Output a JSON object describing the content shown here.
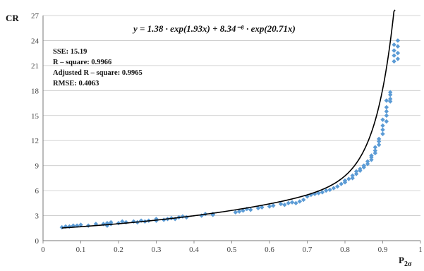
{
  "chart_data": {
    "type": "scatter",
    "title": "",
    "xlabel": "P",
    "xlabel_subscript": "2σ",
    "ylabel": "CR",
    "xlim": [
      0,
      1
    ],
    "ylim": [
      0,
      27
    ],
    "x_ticks": [
      "0",
      "0.1",
      "0.2",
      "0.3",
      "0.4",
      "0.5",
      "0.6",
      "0.7",
      "0.8",
      "0.9",
      "1"
    ],
    "y_ticks": [
      "0",
      "3",
      "6",
      "9",
      "12",
      "15",
      "18",
      "21",
      "24",
      "27"
    ],
    "grid": "horizontal",
    "formula": "y = 1.38 · exp(1.93x) + 8.34⁻⁸ · exp(20.71x)",
    "stats": [
      "SSE: 15.19",
      "R – square: 0.9966",
      "Adjusted R – square: 0.9965",
      "RMSE: 0.4063"
    ],
    "colors": {
      "points": "#5b9bd5",
      "fit": "#000000",
      "grid": "#c8c8c8"
    },
    "fit": {
      "a": 1.38,
      "b": 1.93,
      "c": 8.34e-08,
      "d": 20.71,
      "x_start": 0.05,
      "x_end": 0.96
    },
    "series": [
      {
        "marker": "diamond",
        "x": [
          0.05,
          0.06,
          0.07,
          0.08,
          0.09,
          0.1,
          0.12,
          0.14,
          0.16,
          0.17,
          0.17,
          0.18,
          0.18,
          0.2,
          0.21,
          0.22,
          0.24,
          0.25,
          0.26,
          0.27,
          0.28,
          0.3,
          0.3,
          0.32,
          0.33,
          0.34,
          0.35,
          0.36,
          0.37,
          0.38,
          0.42,
          0.43,
          0.45,
          0.45,
          0.51,
          0.52,
          0.53,
          0.54,
          0.55,
          0.57,
          0.58,
          0.6,
          0.61,
          0.63,
          0.64,
          0.65,
          0.66,
          0.67,
          0.68,
          0.69,
          0.7,
          0.71,
          0.72,
          0.73,
          0.74,
          0.75,
          0.76,
          0.77,
          0.78,
          0.79,
          0.8,
          0.8,
          0.81,
          0.82,
          0.82,
          0.83,
          0.83,
          0.84,
          0.84,
          0.85,
          0.85,
          0.86,
          0.86,
          0.87,
          0.87,
          0.87,
          0.88,
          0.88,
          0.88,
          0.89,
          0.89,
          0.89,
          0.9,
          0.9,
          0.9,
          0.9,
          0.91,
          0.91,
          0.91,
          0.91,
          0.91,
          0.92,
          0.92,
          0.92,
          0.92,
          0.93,
          0.93,
          0.93,
          0.93,
          0.94,
          0.94,
          0.94,
          0.94
        ],
        "y": [
          1.6,
          1.7,
          1.7,
          1.8,
          1.8,
          1.9,
          1.8,
          2.0,
          2.0,
          1.8,
          2.1,
          2.2,
          2.0,
          2.1,
          2.3,
          2.2,
          2.3,
          2.2,
          2.4,
          2.3,
          2.4,
          2.4,
          2.6,
          2.5,
          2.6,
          2.7,
          2.6,
          2.8,
          2.9,
          2.8,
          3.0,
          3.2,
          3.1,
          3.2,
          3.4,
          3.5,
          3.6,
          3.8,
          3.7,
          3.9,
          4.0,
          4.1,
          4.2,
          4.4,
          4.3,
          4.5,
          4.6,
          4.5,
          4.7,
          4.9,
          5.3,
          5.5,
          5.6,
          5.7,
          5.8,
          6.0,
          6.1,
          6.3,
          6.5,
          6.8,
          7.0,
          7.2,
          7.4,
          7.5,
          7.8,
          8.0,
          8.3,
          8.4,
          8.6,
          8.8,
          9.0,
          9.2,
          9.5,
          9.7,
          10.0,
          10.2,
          10.5,
          10.8,
          11.2,
          11.5,
          11.9,
          12.2,
          12.8,
          13.3,
          13.8,
          14.5,
          14.3,
          15.0,
          15.5,
          16.0,
          16.8,
          16.7,
          17.0,
          17.5,
          17.8,
          21.5,
          22.2,
          22.8,
          23.5,
          21.8,
          22.5,
          23.3,
          24.0
        ]
      }
    ]
  }
}
